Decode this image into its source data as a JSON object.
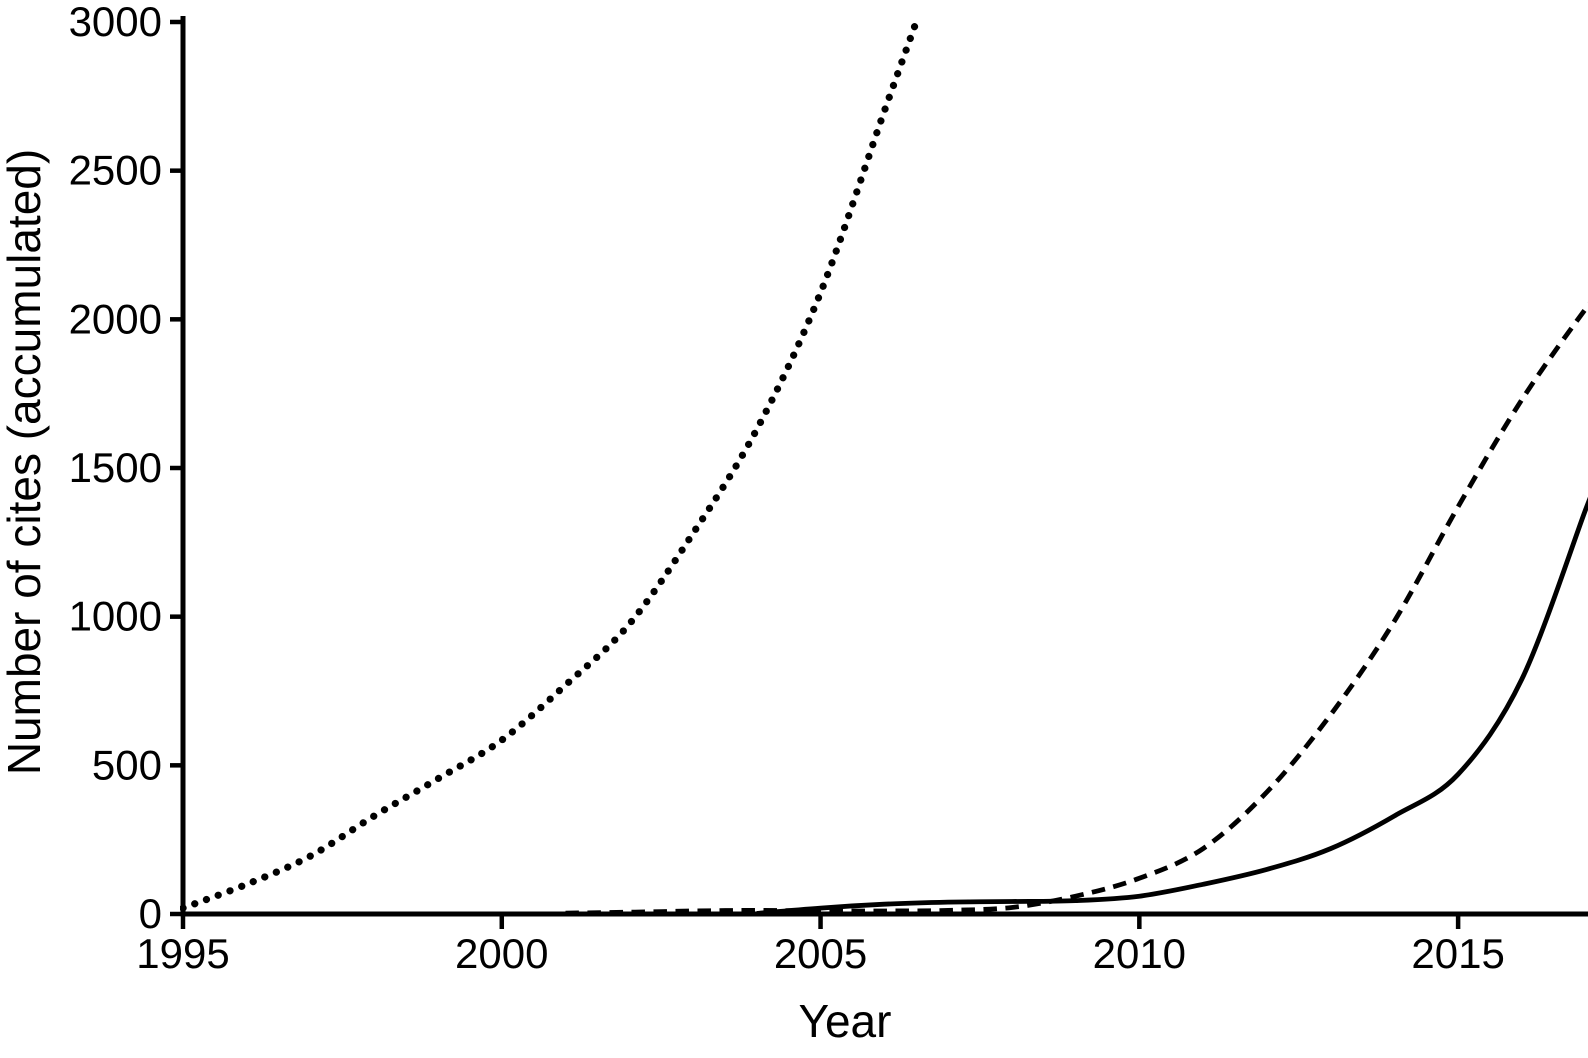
{
  "figure": {
    "background": "#ffffff",
    "ink": "#000000"
  },
  "chart_data": {
    "type": "line",
    "title": "",
    "xlabel": "Year",
    "ylabel": "Number of cites (accumulated)",
    "xlim": [
      1995,
      2017.1
    ],
    "ylim": [
      0,
      3000
    ],
    "x_ticks": [
      1995,
      2000,
      2005,
      2010,
      2015
    ],
    "x_tick_labels": [
      "1995",
      "2000",
      "2005",
      "2010",
      "2015"
    ],
    "y_ticks": [
      0,
      500,
      1000,
      1500,
      2000,
      2500,
      3000
    ],
    "y_tick_labels": [
      "0",
      "500",
      "1000",
      "1500",
      "2000",
      "2500",
      "3000"
    ],
    "grid": false,
    "legend": "none",
    "series": [
      {
        "name": "dotted-series",
        "style": "dotted",
        "x": [
          1995,
          1996,
          1997,
          1998,
          1999,
          2000,
          2001,
          2002,
          2003,
          2004,
          2005,
          2006,
          2006.5
        ],
        "y": [
          20,
          100,
          195,
          330,
          455,
          585,
          770,
          975,
          1280,
          1630,
          2090,
          2700,
          3000
        ]
      },
      {
        "name": "dashed-series",
        "style": "dashed",
        "x": [
          2001,
          2002,
          2003,
          2004,
          2005,
          2006,
          2007,
          2008,
          2009,
          2010,
          2011,
          2012,
          2013,
          2014,
          2015,
          2016,
          2017,
          2017.1
        ],
        "y": [
          3,
          6,
          10,
          12,
          10,
          10,
          12,
          22,
          60,
          120,
          220,
          410,
          670,
          985,
          1370,
          1730,
          2035,
          2050
        ]
      },
      {
        "name": "solid-series",
        "style": "solid",
        "x": [
          2004,
          2005,
          2006,
          2007,
          2008,
          2009,
          2010,
          2011,
          2012,
          2013,
          2014,
          2015,
          2016,
          2017,
          2017.1
        ],
        "y": [
          2,
          20,
          33,
          40,
          42,
          45,
          60,
          100,
          150,
          220,
          330,
          470,
          790,
          1360,
          1410
        ]
      }
    ]
  }
}
